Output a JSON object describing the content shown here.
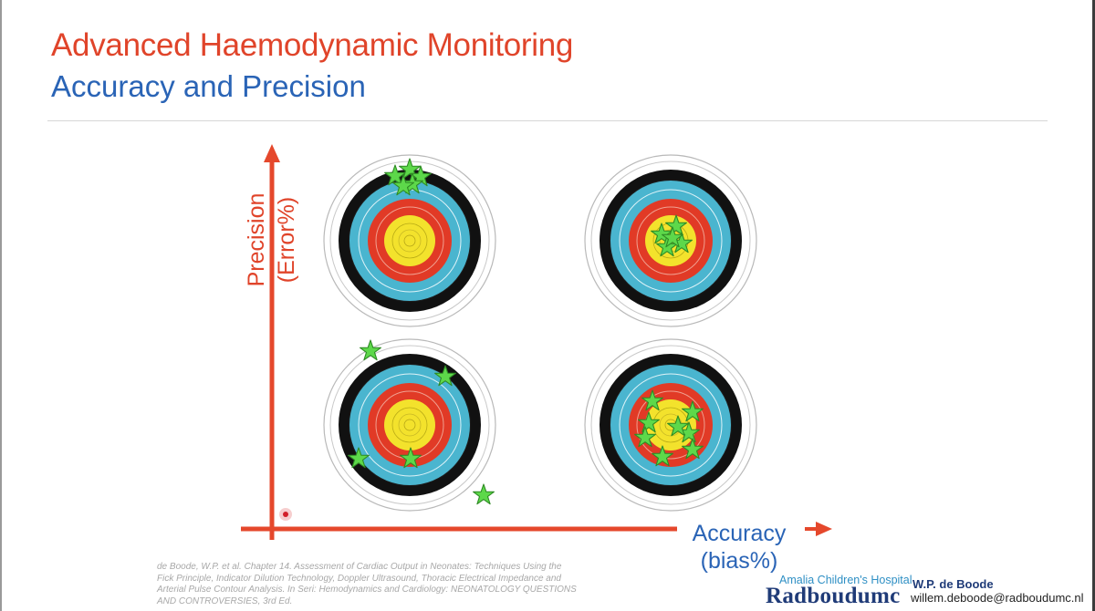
{
  "slide": {
    "title": "Advanced Haemodynamic Monitoring",
    "subtitle": "Accuracy and Precision"
  },
  "axes": {
    "y_label_line1": "Precision",
    "y_label_line2": "(Error%)",
    "x_label_line1": "Accuracy",
    "x_label_line2": "(bias%)",
    "arrow_color": "#e5482c"
  },
  "targets": [
    {
      "id": "high-precision-low-accuracy",
      "star_count": 5
    },
    {
      "id": "high-precision-high-accuracy",
      "star_count": 5
    },
    {
      "id": "low-precision-low-accuracy",
      "star_count": 6
    },
    {
      "id": "low-precision-high-accuracy",
      "star_count": 8
    }
  ],
  "target_colors": {
    "black_ring": "#111111",
    "blue_ring": "#4ab5cf",
    "red_ring": "#e13a26",
    "yellow_ring": "#f3e22c",
    "star": "#5dd84a"
  },
  "citation": {
    "lines": [
      "de Boode, W.P. et al. Chapter 14. Assessment of Cardiac Output in Neonates: Techniques Using the",
      "Fick Principle, Indicator Dilution Technology, Doppler Ultrasound, Thoracic Electrical Impedance and",
      "Arterial Pulse Contour Analysis. In Seri: Hemodynamics and Cardiology: NEONATOLOGY QUESTIONS",
      "AND CONTROVERSIES, 3rd Ed."
    ]
  },
  "footer": {
    "hospital": "Amalia Children's Hospital",
    "logo_text": "Radboudumc",
    "author": "W.P. de Boode",
    "email": "willem.deboode@radboudumc.nl"
  }
}
